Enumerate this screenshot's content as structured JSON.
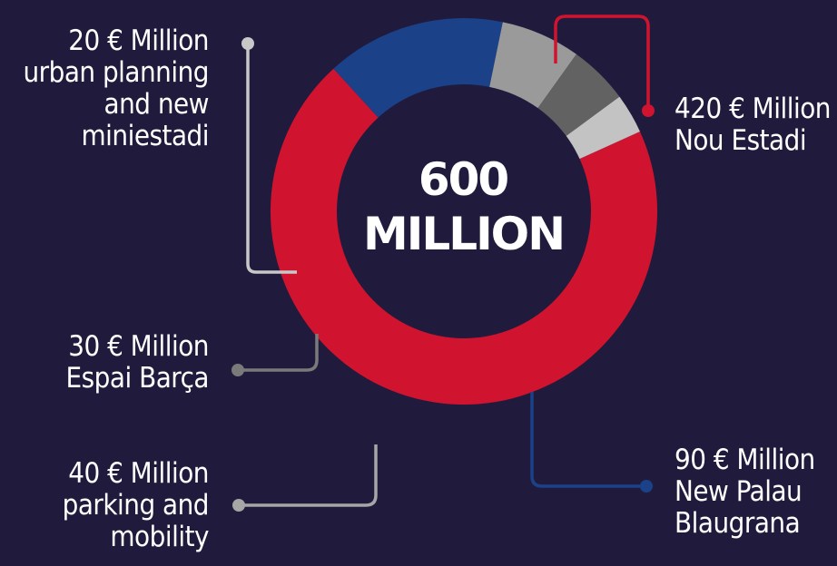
{
  "chart_data": {
    "type": "pie",
    "variant": "donut",
    "center_label": [
      "600",
      "MILLION"
    ],
    "slices": [
      {
        "key": "nou_estadi",
        "value": 420,
        "color": "#d0142f",
        "lines": [
          "420 € Million",
          "Nou Estadi"
        ]
      },
      {
        "key": "palau",
        "value": 90,
        "color": "#1b4189",
        "lines": [
          "90 € Million",
          "New Palau",
          "Blaugrana"
        ]
      },
      {
        "key": "parking",
        "value": 40,
        "color": "#9a9a9a",
        "lines": [
          "40 € Million",
          "parking and",
          "mobility"
        ]
      },
      {
        "key": "espai",
        "value": 30,
        "color": "#626262",
        "lines": [
          "30 € Million",
          "Espai Barça"
        ]
      },
      {
        "key": "urban",
        "value": 20,
        "color": "#c3c3c3",
        "lines": [
          "20 € Million",
          "urban planning",
          "and new",
          "miniestadi"
        ]
      }
    ],
    "leader_colors": {
      "nou_estadi": "#d0142f",
      "palau": "#1b4189",
      "parking": "#a6a6a6",
      "espai": "#7a7a7a",
      "urban": "#c8c8c8"
    }
  }
}
